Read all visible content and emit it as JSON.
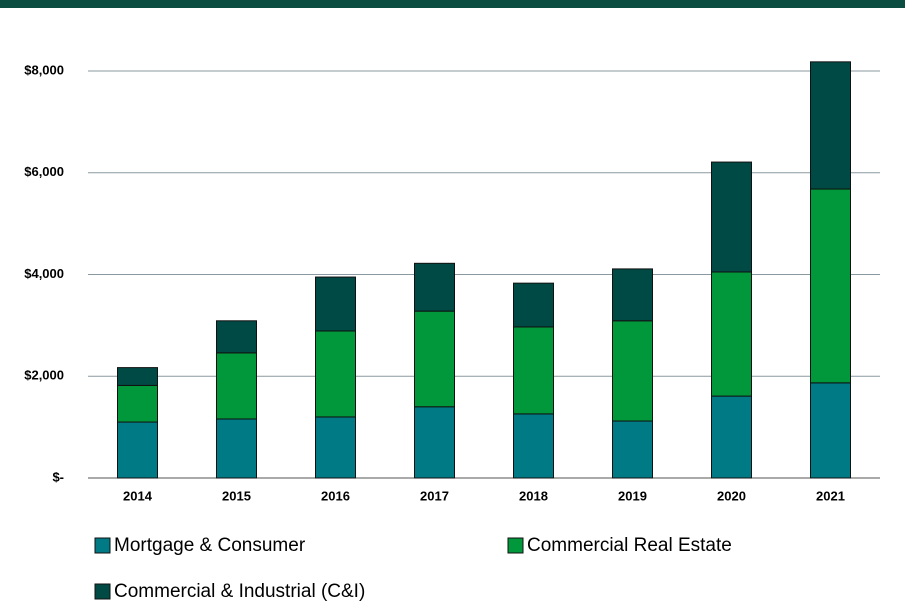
{
  "chart_data": {
    "type": "stacked_bar",
    "categories": [
      "2014",
      "2015",
      "2016",
      "2017",
      "2018",
      "2019",
      "2020",
      "2021"
    ],
    "series": [
      {
        "name": "Mortgage & Consumer",
        "color": "#007a85",
        "values": [
          1100,
          1160,
          1200,
          1400,
          1260,
          1120,
          1610,
          1870
        ]
      },
      {
        "name": "Commercial Real Estate",
        "color": "#00983a",
        "values": [
          720,
          1300,
          1690,
          1880,
          1710,
          1970,
          2440,
          3810
        ]
      },
      {
        "name": "Commercial & Industrial (C&I)",
        "color": "#004a45",
        "values": [
          350,
          630,
          1060,
          940,
          860,
          1020,
          2160,
          2500
        ]
      }
    ],
    "ylim": [
      0,
      8000
    ],
    "yticks": [
      {
        "value": 0,
        "label": "$-"
      },
      {
        "value": 2000,
        "label": "$2,000"
      },
      {
        "value": 4000,
        "label": "$4,000"
      },
      {
        "value": 6000,
        "label": "$6,000"
      },
      {
        "value": 8000,
        "label": "$8,000"
      }
    ],
    "grid": true,
    "legend": "bottom"
  }
}
